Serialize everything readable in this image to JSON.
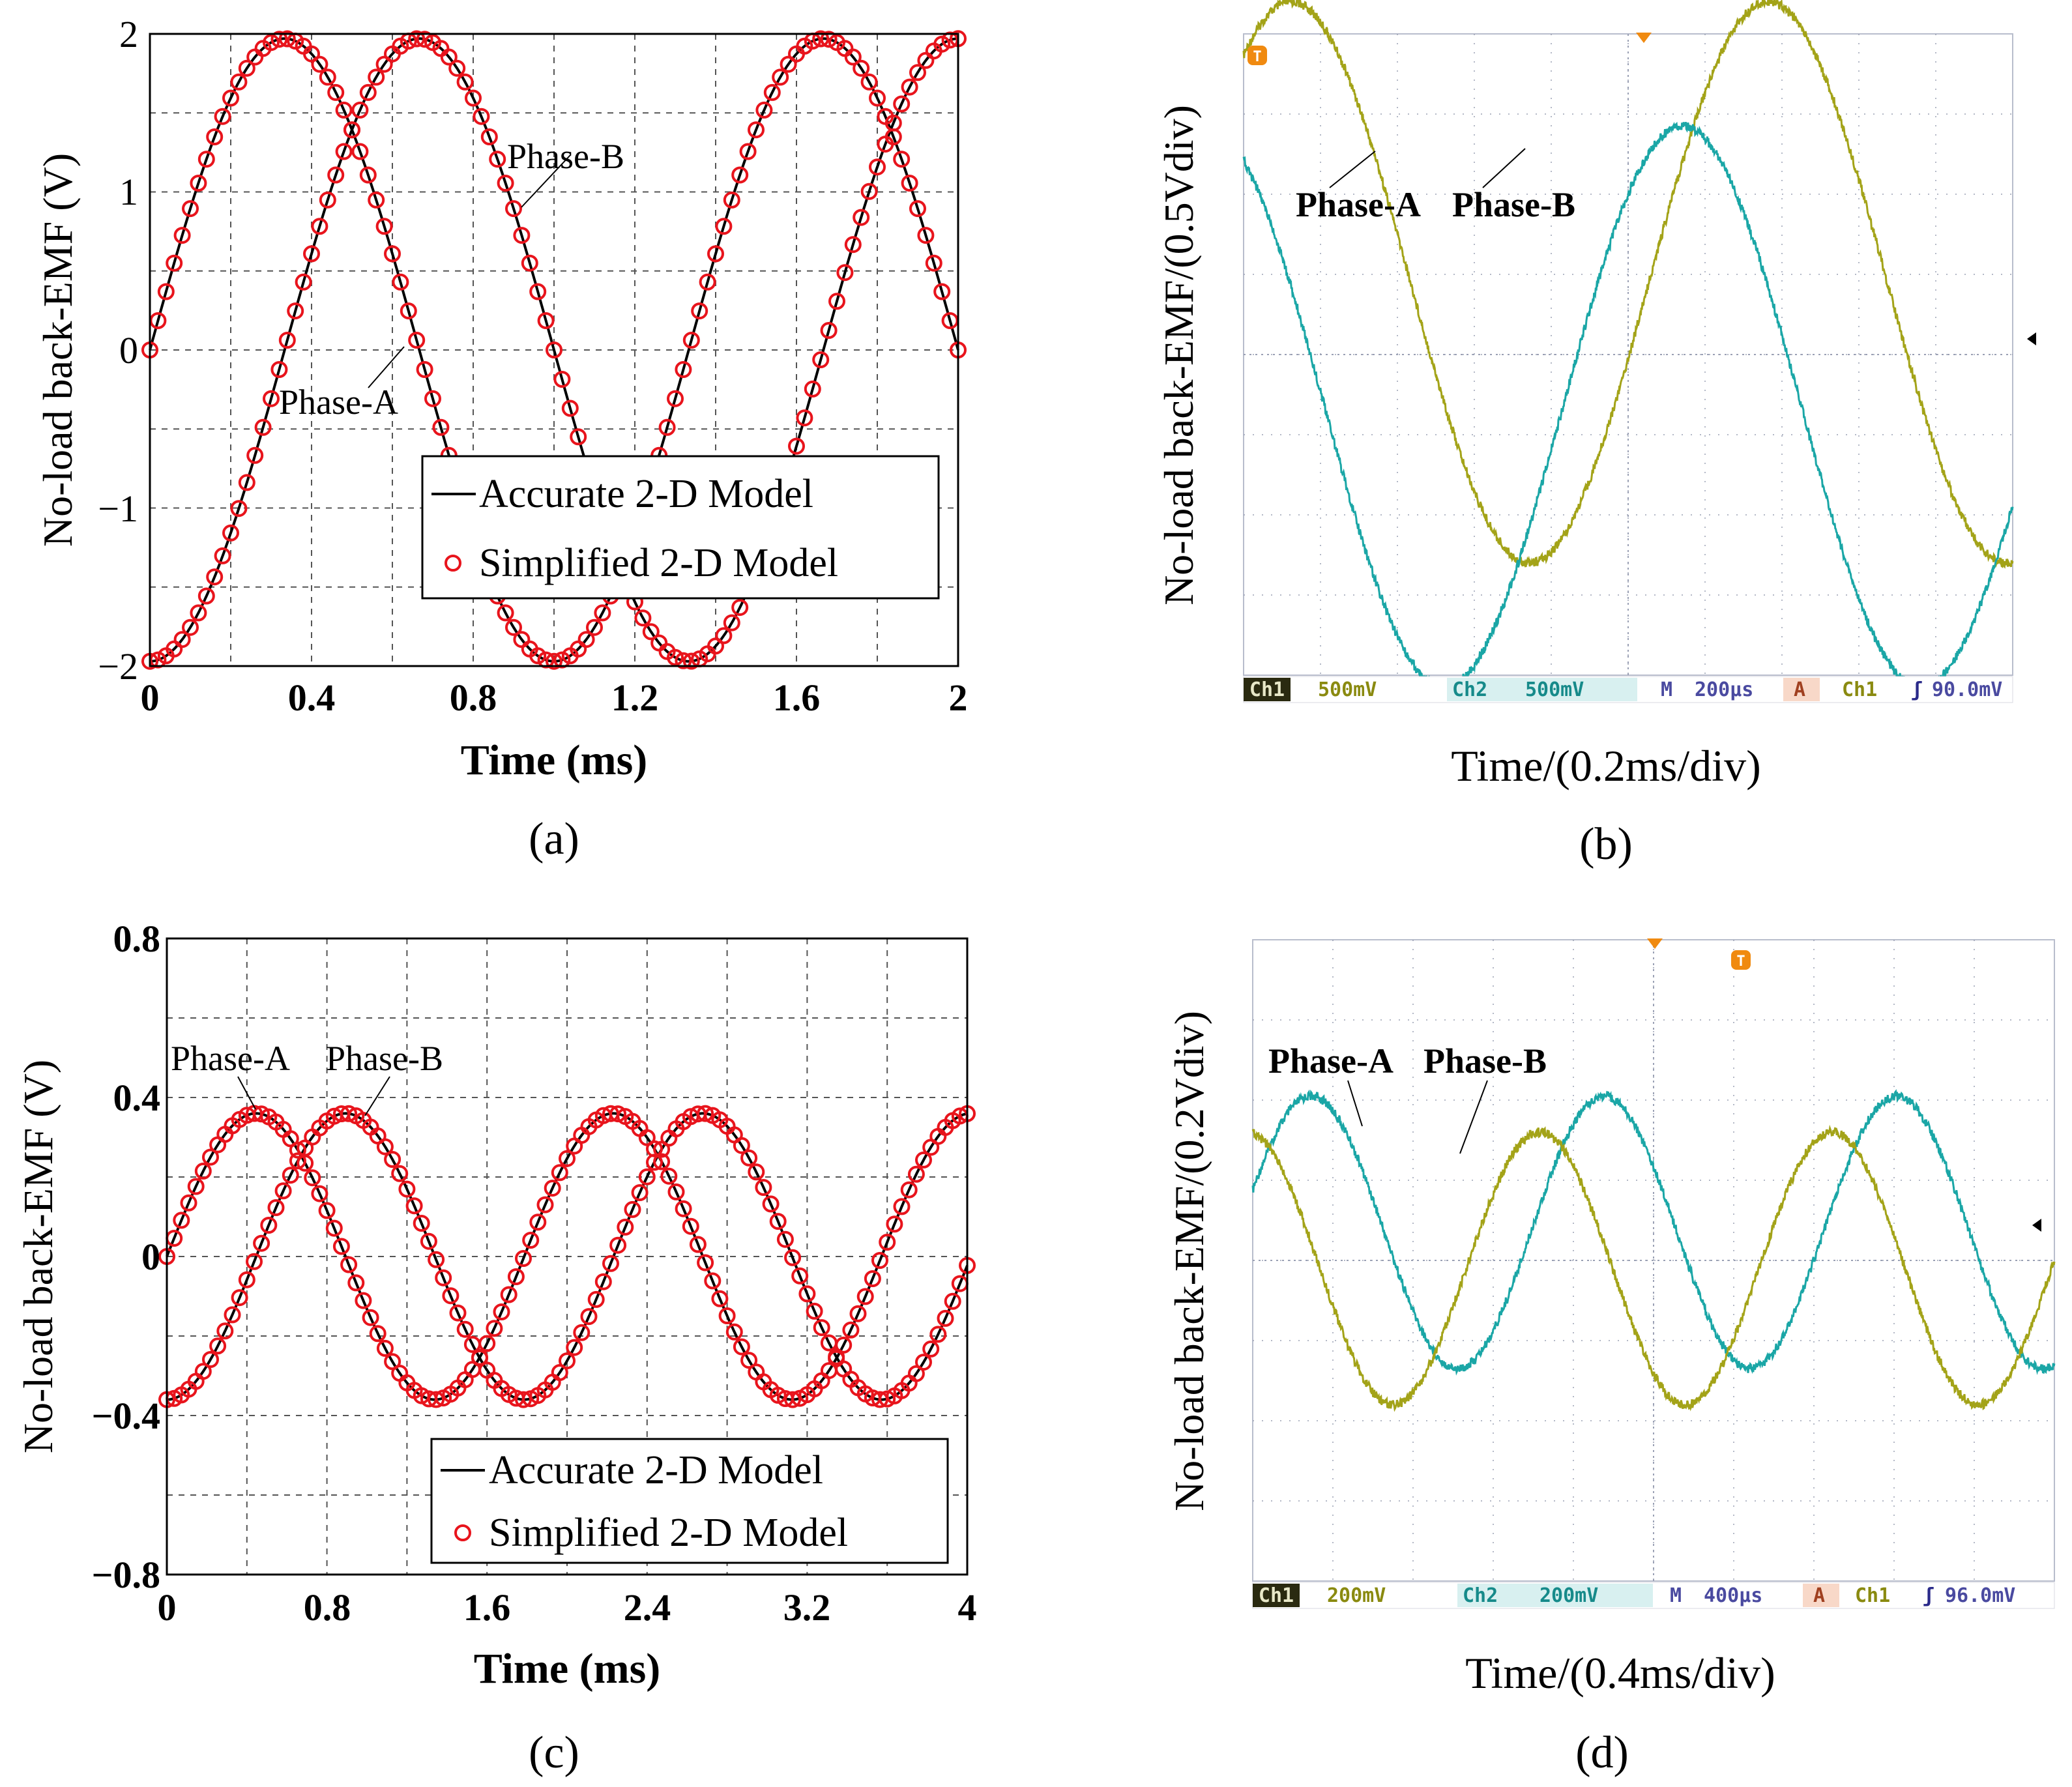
{
  "chart_data": [
    {
      "panel": "a",
      "type": "line",
      "caption": "(a)",
      "xlabel": "Time (ms)",
      "ylabel": "No-load back-EMF (V)",
      "xlim": [
        0,
        2
      ],
      "ylim": [
        -2,
        2
      ],
      "xticks": [
        "0",
        "0.4",
        "0.8",
        "1.2",
        "1.6",
        "2"
      ],
      "yticks": [
        "2",
        "1",
        "0",
        "−1",
        "−2"
      ],
      "grid": true,
      "frequency_khz": 0.75,
      "series": [
        {
          "name": "Phase-A",
          "amplitude": 1.97,
          "phase_deg": 0
        },
        {
          "name": "Phase-B",
          "amplitude": 1.97,
          "phase_deg": -90
        }
      ],
      "legend": {
        "accurate": "Accurate 2-D Model",
        "simplified": "Simplified 2-D Model",
        "position": "lower-right"
      },
      "annotations": {
        "phase_a": "Phase-A",
        "phase_b": "Phase-B"
      }
    },
    {
      "panel": "b",
      "type": "line",
      "caption": "(b)",
      "xlabel": "Time/(0.2ms/div)",
      "ylabel": "No-load back-EMF/(0.5Vdiv)",
      "grid": true,
      "series": [
        {
          "name": "Phase-A",
          "color": "#a3a318",
          "amplitude_div": 3.5
        },
        {
          "name": "Phase-B",
          "color": "#1aa6a6",
          "amplitude_div": 3.5
        }
      ],
      "annotations": {
        "phase_a": "Phase-A",
        "phase_b": "Phase-B"
      },
      "status": {
        "ch1": "Ch1",
        "ch1_scale": "500mV",
        "ch2": "Ch2",
        "ch2_scale": "500mV",
        "m": "M",
        "time_scale": "200µs",
        "a": "A",
        "trig_ch": "Ch1",
        "trig_symbol": "ʃ",
        "trig_level": "90.0mV"
      }
    },
    {
      "panel": "c",
      "type": "line",
      "caption": "(c)",
      "xlabel": "Time (ms)",
      "ylabel": "No-load back-EMF (V)",
      "xlim": [
        0,
        4
      ],
      "ylim": [
        -0.8,
        0.8
      ],
      "xticks": [
        "0",
        "0.8",
        "1.6",
        "2.4",
        "3.2",
        "4"
      ],
      "yticks": [
        "0.8",
        "0.4",
        "0",
        "−0.4",
        "−0.8"
      ],
      "grid": true,
      "frequency_khz": 0.56,
      "series": [
        {
          "name": "Phase-A",
          "amplitude": 0.36,
          "phase_deg": 0
        },
        {
          "name": "Phase-B",
          "amplitude": 0.36,
          "phase_deg": -90
        }
      ],
      "legend": {
        "accurate": "Accurate 2-D Model",
        "simplified": "Simplified 2-D Model",
        "position": "lower-right"
      },
      "annotations": {
        "phase_a": "Phase-A",
        "phase_b": "Phase-B"
      }
    },
    {
      "panel": "d",
      "type": "line",
      "caption": "(d)",
      "xlabel": "Time/(0.4ms/div)",
      "ylabel": "No-load back-EMF/(0.2Vdiv)",
      "grid": true,
      "series": [
        {
          "name": "Phase-A",
          "color": "#1aa6a6",
          "amplitude_div": 1.7
        },
        {
          "name": "Phase-B",
          "color": "#a3a318",
          "amplitude_div": 1.7
        }
      ],
      "annotations": {
        "phase_a": "Phase-A",
        "phase_b": "Phase-B"
      },
      "status": {
        "ch1": "Ch1",
        "ch1_scale": "200mV",
        "ch2": "Ch2",
        "ch2_scale": "200mV",
        "m": "M",
        "time_scale": "400µs",
        "a": "A",
        "trig_ch": "Ch1",
        "trig_symbol": "ʃ",
        "trig_level": "96.0mV"
      }
    }
  ],
  "colors": {
    "marker": "#e8141c",
    "line": "#000000",
    "scope_yellow": "#a3a318",
    "scope_cyan": "#1aa6a6",
    "scope_grid": "#9aa0b4",
    "trigger": "#f08a10"
  }
}
